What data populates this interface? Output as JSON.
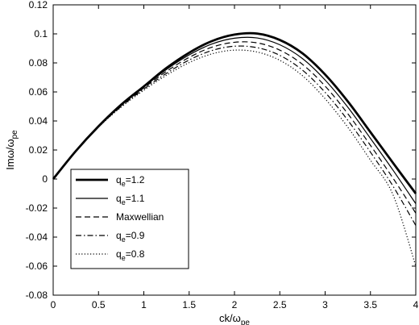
{
  "chart_data": {
    "type": "line",
    "xlabel": "ck/ω",
    "xlabel_sub": "pe",
    "ylabel": "Imω/ω",
    "ylabel_sub": "pe",
    "xlim": [
      0,
      4
    ],
    "ylim": [
      -0.08,
      0.12
    ],
    "x_ticks": [
      0,
      0.5,
      1,
      1.5,
      2,
      2.5,
      3,
      3.5,
      4
    ],
    "x_tick_labels": [
      "0",
      "0.5",
      "1",
      "1.5",
      "2",
      "2.5",
      "3",
      "3.5",
      "4"
    ],
    "y_ticks": [
      -0.08,
      -0.06,
      -0.04,
      -0.02,
      0,
      0.02,
      0.04,
      0.06,
      0.08,
      0.1,
      0.12
    ],
    "y_tick_labels": [
      "-0.08",
      "-0.06",
      "-0.04",
      "-0.02",
      "0",
      "0.02",
      "0.04",
      "0.06",
      "0.08",
      "0.1",
      "0.12"
    ],
    "grid": false,
    "legend_position": "lower-left",
    "x": [
      0,
      0.25,
      0.5,
      0.75,
      1.0,
      1.25,
      1.5,
      1.75,
      2.0,
      2.25,
      2.5,
      2.75,
      3.0,
      3.25,
      3.5,
      3.75,
      4.0
    ],
    "series": [
      {
        "name": "q_e=1.2",
        "legend_main": "q",
        "legend_sub": "e",
        "legend_tail": "=1.2",
        "style": "thick",
        "values": [
          0.0,
          0.0193,
          0.0363,
          0.0512,
          0.0638,
          0.0765,
          0.087,
          0.095,
          0.0995,
          0.1002,
          0.0958,
          0.0866,
          0.072,
          0.0535,
          0.0323,
          0.011,
          -0.01
        ]
      },
      {
        "name": "q_e=1.1",
        "legend_main": "q",
        "legend_sub": "e",
        "legend_tail": "=1.1",
        "style": "solid",
        "values": [
          0.0,
          0.0193,
          0.0363,
          0.051,
          0.0635,
          0.0755,
          0.0855,
          0.093,
          0.097,
          0.0972,
          0.0925,
          0.083,
          0.0682,
          0.0495,
          0.028,
          0.006,
          -0.017
        ]
      },
      {
        "name": "Maxwellian",
        "legend_main": "Maxwellian",
        "legend_sub": "",
        "legend_tail": "",
        "style": "dashed",
        "values": [
          0.0,
          0.0193,
          0.0362,
          0.0505,
          0.0628,
          0.0742,
          0.0838,
          0.0908,
          0.0942,
          0.0938,
          0.0888,
          0.079,
          0.064,
          0.045,
          0.0232,
          0.0005,
          -0.0235
        ]
      },
      {
        "name": "q_e=0.9",
        "legend_main": "q",
        "legend_sub": "e",
        "legend_tail": "=0.9",
        "style": "dashdot",
        "values": [
          0.0,
          0.0193,
          0.036,
          0.05,
          0.062,
          0.0728,
          0.082,
          0.0885,
          0.0915,
          0.0905,
          0.0852,
          0.075,
          0.0597,
          0.0405,
          0.0185,
          -0.005,
          -0.032
        ]
      },
      {
        "name": "q_e=0.8",
        "legend_main": "q",
        "legend_sub": "e",
        "legend_tail": "=0.8",
        "style": "dotted",
        "values": [
          0.0,
          0.0193,
          0.0358,
          0.0495,
          0.0612,
          0.0715,
          0.0802,
          0.0862,
          0.0888,
          0.0875,
          0.0818,
          0.0712,
          0.0553,
          0.0357,
          0.013,
          -0.011,
          -0.06
        ]
      }
    ]
  }
}
